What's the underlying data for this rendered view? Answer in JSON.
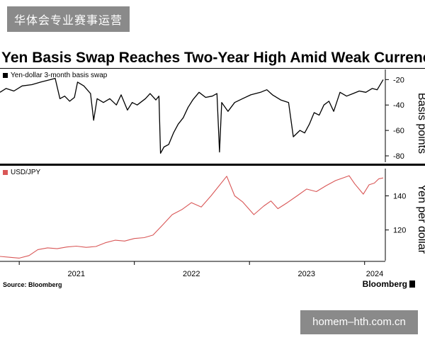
{
  "watermark_top": "华体会专业赛事运营",
  "watermark_bottom": "homem–hth.com.cn",
  "footer": {
    "source": "Source: Bloomberg",
    "brand": "Bloomberg"
  },
  "colors": {
    "swap_line": "#000000",
    "usdjpy_line": "#d95757",
    "accent": "#000000"
  },
  "chart_data": [
    {
      "type": "line",
      "title": "Yen Basis Swap Reaches Two-Year High Amid Weak Currency",
      "ylabel": "Basis points",
      "ylim": [
        -85,
        -12
      ],
      "y_ticks": [
        -20,
        -40,
        -60,
        -80
      ],
      "y_axis_side": "right",
      "x_range": [
        "2020-11-01",
        "2024-02-29"
      ],
      "legend": "top-left",
      "series": [
        {
          "name": "Yen-dollar 3-month basis swap",
          "points": [
            [
              "2020-11-01",
              -30
            ],
            [
              "2020-11-20",
              -27
            ],
            [
              "2020-12-15",
              -29
            ],
            [
              "2021-01-10",
              -25
            ],
            [
              "2021-02-10",
              -24
            ],
            [
              "2021-03-10",
              -22
            ],
            [
              "2021-04-10",
              -20
            ],
            [
              "2021-04-25",
              -19
            ],
            [
              "2021-05-10",
              -35
            ],
            [
              "2021-05-25",
              -33
            ],
            [
              "2021-06-10",
              -37
            ],
            [
              "2021-06-25",
              -34
            ],
            [
              "2021-07-05",
              -22
            ],
            [
              "2021-07-25",
              -25
            ],
            [
              "2021-08-15",
              -31
            ],
            [
              "2021-08-25",
              -52
            ],
            [
              "2021-09-05",
              -35
            ],
            [
              "2021-09-25",
              -38
            ],
            [
              "2021-10-15",
              -35
            ],
            [
              "2021-11-05",
              -40
            ],
            [
              "2021-11-20",
              -32
            ],
            [
              "2021-12-10",
              -44
            ],
            [
              "2021-12-25",
              -38
            ],
            [
              "2022-01-10",
              -40
            ],
            [
              "2022-02-05",
              -35
            ],
            [
              "2022-02-20",
              -31
            ],
            [
              "2022-03-10",
              -36
            ],
            [
              "2022-03-20",
              -33
            ],
            [
              "2022-03-25",
              -78
            ],
            [
              "2022-04-05",
              -73
            ],
            [
              "2022-04-20",
              -71
            ],
            [
              "2022-05-05",
              -62
            ],
            [
              "2022-05-20",
              -55
            ],
            [
              "2022-06-05",
              -50
            ],
            [
              "2022-06-20",
              -42
            ],
            [
              "2022-07-05",
              -36
            ],
            [
              "2022-07-25",
              -30
            ],
            [
              "2022-08-15",
              -34
            ],
            [
              "2022-09-05",
              -33
            ],
            [
              "2022-09-20",
              -31
            ],
            [
              "2022-09-28",
              -77
            ],
            [
              "2022-10-05",
              -38
            ],
            [
              "2022-10-25",
              -45
            ],
            [
              "2022-11-15",
              -38
            ],
            [
              "2022-12-10",
              -35
            ],
            [
              "2023-01-05",
              -32
            ],
            [
              "2023-02-05",
              -30
            ],
            [
              "2023-02-25",
              -28
            ],
            [
              "2023-03-15",
              -32
            ],
            [
              "2023-04-10",
              -36
            ],
            [
              "2023-05-05",
              -38
            ],
            [
              "2023-05-20",
              -65
            ],
            [
              "2023-06-10",
              -60
            ],
            [
              "2023-06-25",
              -62
            ],
            [
              "2023-07-10",
              -55
            ],
            [
              "2023-07-25",
              -46
            ],
            [
              "2023-08-10",
              -48
            ],
            [
              "2023-08-25",
              -40
            ],
            [
              "2023-09-10",
              -37
            ],
            [
              "2023-09-25",
              -45
            ],
            [
              "2023-10-15",
              -30
            ],
            [
              "2023-11-05",
              -33
            ],
            [
              "2023-11-25",
              -31
            ],
            [
              "2023-12-15",
              -29
            ],
            [
              "2024-01-05",
              -30
            ],
            [
              "2024-01-25",
              -27
            ],
            [
              "2024-02-10",
              -28
            ],
            [
              "2024-02-29",
              -20
            ]
          ]
        }
      ]
    },
    {
      "type": "line",
      "ylabel": "Yen per dollar",
      "ylim": [
        102,
        156
      ],
      "y_ticks": [
        120,
        140
      ],
      "y_axis_side": "right",
      "x_range": [
        "2020-11-01",
        "2024-02-29"
      ],
      "x_ticks": [
        "2021",
        "2022",
        "2023",
        "2024"
      ],
      "legend": "top-left",
      "series": [
        {
          "name": "USD/JPY",
          "points": [
            [
              "2020-11-01",
              104.5
            ],
            [
              "2020-12-01",
              104.0
            ],
            [
              "2021-01-01",
              103.5
            ],
            [
              "2021-02-01",
              105.0
            ],
            [
              "2021-03-01",
              108.5
            ],
            [
              "2021-04-01",
              109.5
            ],
            [
              "2021-05-01",
              109.0
            ],
            [
              "2021-06-01",
              110.0
            ],
            [
              "2021-07-01",
              110.5
            ],
            [
              "2021-08-01",
              109.8
            ],
            [
              "2021-09-01",
              110.3
            ],
            [
              "2021-10-01",
              112.5
            ],
            [
              "2021-11-01",
              114.0
            ],
            [
              "2021-12-01",
              113.5
            ],
            [
              "2022-01-01",
              115.0
            ],
            [
              "2022-02-01",
              115.5
            ],
            [
              "2022-03-01",
              117.0
            ],
            [
              "2022-04-01",
              123.0
            ],
            [
              "2022-05-01",
              129.0
            ],
            [
              "2022-06-01",
              132.0
            ],
            [
              "2022-07-01",
              136.0
            ],
            [
              "2022-08-01",
              133.5
            ],
            [
              "2022-09-01",
              140.0
            ],
            [
              "2022-10-21",
              151.5
            ],
            [
              "2022-11-15",
              140.0
            ],
            [
              "2022-12-10",
              136.5
            ],
            [
              "2023-01-15",
              129.0
            ],
            [
              "2023-02-15",
              134.0
            ],
            [
              "2023-03-10",
              137.0
            ],
            [
              "2023-04-01",
              132.5
            ],
            [
              "2023-05-01",
              136.0
            ],
            [
              "2023-06-01",
              140.0
            ],
            [
              "2023-07-01",
              144.0
            ],
            [
              "2023-08-01",
              142.5
            ],
            [
              "2023-09-01",
              146.0
            ],
            [
              "2023-10-01",
              149.0
            ],
            [
              "2023-11-13",
              151.8
            ],
            [
              "2023-12-01",
              147.0
            ],
            [
              "2023-12-28",
              141.0
            ],
            [
              "2024-01-15",
              146.5
            ],
            [
              "2024-02-01",
              147.5
            ],
            [
              "2024-02-15",
              150.0
            ],
            [
              "2024-02-29",
              150.5
            ]
          ]
        }
      ]
    }
  ]
}
